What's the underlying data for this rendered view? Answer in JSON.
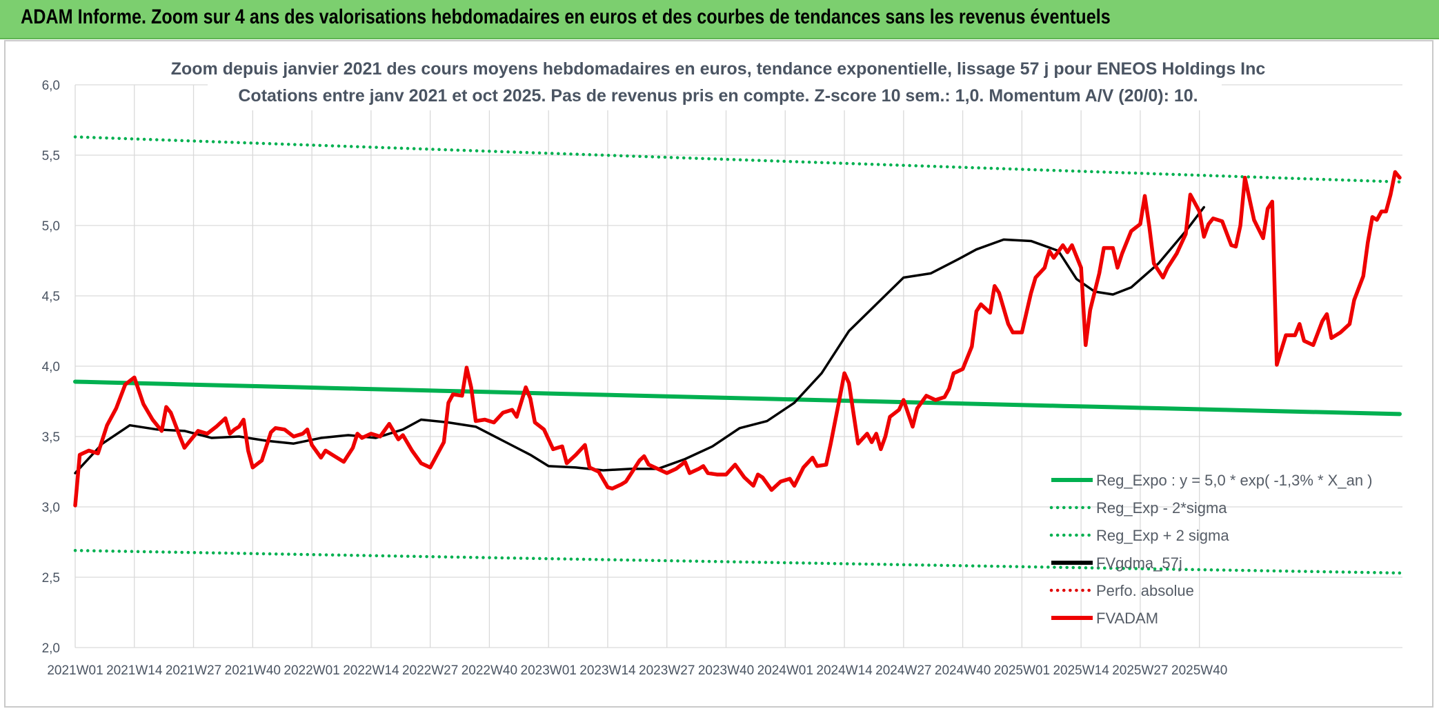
{
  "banner": {
    "title": "ADAM Informe. Zoom sur 4 ans des valorisations hebdomadaires en euros et des courbes de tendances sans les revenus éventuels",
    "color": "#7ccf6f"
  },
  "chart_data": {
    "type": "line",
    "title": "Zoom depuis janvier 2021 des cours moyens hebdomadaires en euros, tendance exponentielle, lissage 57 j pour ENEOS Holdings Inc",
    "subtitle": "Cotations entre janv 2021 et oct 2025. Pas de revenus pris en compte. Z-score 10 sem.: 1,0. Momentum A/V (20/0): 10.",
    "xlabel": "",
    "ylabel": "",
    "ylim": [
      2.0,
      6.0
    ],
    "y_ticks": [
      "2,0",
      "2,5",
      "3,0",
      "3,5",
      "4,0",
      "4,5",
      "5,0",
      "5,5",
      "6,0"
    ],
    "x_ticks": [
      "2021W01",
      "2021W14",
      "2021W27",
      "2021W40",
      "2022W01",
      "2022W14",
      "2022W27",
      "2022W40",
      "2023W01",
      "2023W14",
      "2023W27",
      "2023W40",
      "2024W01",
      "2024W14",
      "2024W27",
      "2024W40",
      "2025W01",
      "2025W14",
      "2025W27",
      "2025W40"
    ],
    "grid": true,
    "legend_position": "bottom-right",
    "series": [
      {
        "name": "Reg_Expo : y = 5,0 * exp( -1,3% *  X_an )",
        "color": "#00b050",
        "style": "solid",
        "trend": [
          3.89,
          3.66
        ]
      },
      {
        "name": "Reg_Exp - 2*sigma",
        "color": "#00b050",
        "style": "dotted",
        "trend": [
          2.69,
          2.53
        ]
      },
      {
        "name": "Reg_Exp + 2 sigma",
        "color": "#00b050",
        "style": "dotted",
        "trend": [
          5.63,
          5.31
        ]
      },
      {
        "name": "FVgdma_57j",
        "color": "#000000",
        "style": "solid",
        "anchors": [
          [
            1,
            3.24
          ],
          [
            7,
            3.45
          ],
          [
            13,
            3.58
          ],
          [
            19,
            3.55
          ],
          [
            25,
            3.54
          ],
          [
            31,
            3.49
          ],
          [
            37,
            3.5
          ],
          [
            43,
            3.47
          ],
          [
            49,
            3.45
          ],
          [
            55,
            3.49
          ],
          [
            61,
            3.51
          ],
          [
            67,
            3.49
          ],
          [
            73,
            3.55
          ],
          [
            77,
            3.62
          ],
          [
            83,
            3.6
          ],
          [
            89,
            3.57
          ],
          [
            95,
            3.47
          ],
          [
            101,
            3.37
          ],
          [
            105,
            3.29
          ],
          [
            111,
            3.28
          ],
          [
            117,
            3.26
          ],
          [
            123,
            3.27
          ],
          [
            129,
            3.27
          ],
          [
            135,
            3.34
          ],
          [
            141,
            3.43
          ],
          [
            147,
            3.56
          ],
          [
            153,
            3.61
          ],
          [
            159,
            3.74
          ],
          [
            165,
            3.95
          ],
          [
            171,
            4.25
          ],
          [
            177,
            4.44
          ],
          [
            183,
            4.63
          ],
          [
            189,
            4.66
          ],
          [
            195,
            4.76
          ],
          [
            199,
            4.83
          ],
          [
            205,
            4.9
          ],
          [
            211,
            4.89
          ],
          [
            217,
            4.82
          ],
          [
            221,
            4.62
          ],
          [
            225,
            4.53
          ],
          [
            229,
            4.51
          ],
          [
            233,
            4.56
          ],
          [
            239,
            4.73
          ],
          [
            245,
            4.96
          ],
          [
            249,
            5.13
          ]
        ]
      },
      {
        "name": "Perfo. absolue",
        "color": "#e00000",
        "style": "dotted",
        "anchors": []
      },
      {
        "name": "FVADAM",
        "color": "#ee0000",
        "style": "solid",
        "anchors": [
          [
            1,
            3.01
          ],
          [
            2,
            3.37
          ],
          [
            4,
            3.4
          ],
          [
            6,
            3.38
          ],
          [
            8,
            3.58
          ],
          [
            10,
            3.7
          ],
          [
            12,
            3.87
          ],
          [
            14,
            3.92
          ],
          [
            16,
            3.73
          ],
          [
            18,
            3.62
          ],
          [
            20,
            3.54
          ],
          [
            21,
            3.71
          ],
          [
            22,
            3.67
          ],
          [
            24,
            3.5
          ],
          [
            25,
            3.42
          ],
          [
            27,
            3.5
          ],
          [
            28,
            3.54
          ],
          [
            30,
            3.52
          ],
          [
            32,
            3.57
          ],
          [
            34,
            3.63
          ],
          [
            35,
            3.52
          ],
          [
            36,
            3.55
          ],
          [
            37,
            3.57
          ],
          [
            38,
            3.62
          ],
          [
            39,
            3.4
          ],
          [
            40,
            3.28
          ],
          [
            42,
            3.33
          ],
          [
            44,
            3.53
          ],
          [
            45,
            3.56
          ],
          [
            47,
            3.55
          ],
          [
            49,
            3.5
          ],
          [
            51,
            3.52
          ],
          [
            52,
            3.55
          ],
          [
            53,
            3.44
          ],
          [
            55,
            3.35
          ],
          [
            56,
            3.4
          ],
          [
            58,
            3.36
          ],
          [
            60,
            3.32
          ],
          [
            62,
            3.42
          ],
          [
            63,
            3.52
          ],
          [
            64,
            3.49
          ],
          [
            66,
            3.52
          ],
          [
            68,
            3.5
          ],
          [
            70,
            3.59
          ],
          [
            72,
            3.48
          ],
          [
            73,
            3.51
          ],
          [
            75,
            3.4
          ],
          [
            77,
            3.31
          ],
          [
            79,
            3.28
          ],
          [
            81,
            3.4
          ],
          [
            82,
            3.46
          ],
          [
            83,
            3.74
          ],
          [
            84,
            3.8
          ],
          [
            86,
            3.79
          ],
          [
            87,
            3.99
          ],
          [
            88,
            3.85
          ],
          [
            89,
            3.61
          ],
          [
            91,
            3.62
          ],
          [
            93,
            3.6
          ],
          [
            95,
            3.67
          ],
          [
            97,
            3.69
          ],
          [
            98,
            3.64
          ],
          [
            100,
            3.85
          ],
          [
            101,
            3.77
          ],
          [
            102,
            3.6
          ],
          [
            104,
            3.55
          ],
          [
            106,
            3.41
          ],
          [
            108,
            3.43
          ],
          [
            109,
            3.31
          ],
          [
            111,
            3.37
          ],
          [
            113,
            3.44
          ],
          [
            114,
            3.28
          ],
          [
            116,
            3.25
          ],
          [
            118,
            3.14
          ],
          [
            119,
            3.13
          ],
          [
            121,
            3.16
          ],
          [
            122,
            3.18
          ],
          [
            123,
            3.23
          ],
          [
            125,
            3.33
          ],
          [
            126,
            3.36
          ],
          [
            127,
            3.3
          ],
          [
            129,
            3.27
          ],
          [
            131,
            3.24
          ],
          [
            133,
            3.27
          ],
          [
            135,
            3.32
          ],
          [
            136,
            3.24
          ],
          [
            138,
            3.27
          ],
          [
            139,
            3.29
          ],
          [
            140,
            3.24
          ],
          [
            142,
            3.23
          ],
          [
            144,
            3.23
          ],
          [
            146,
            3.3
          ],
          [
            148,
            3.21
          ],
          [
            150,
            3.15
          ],
          [
            151,
            3.23
          ],
          [
            152,
            3.21
          ],
          [
            154,
            3.12
          ],
          [
            156,
            3.18
          ],
          [
            158,
            3.2
          ],
          [
            159,
            3.15
          ],
          [
            161,
            3.28
          ],
          [
            163,
            3.35
          ],
          [
            164,
            3.29
          ],
          [
            166,
            3.3
          ],
          [
            167,
            3.45
          ],
          [
            169,
            3.78
          ],
          [
            170,
            3.95
          ],
          [
            171,
            3.88
          ],
          [
            173,
            3.45
          ],
          [
            175,
            3.52
          ],
          [
            176,
            3.46
          ],
          [
            177,
            3.52
          ],
          [
            178,
            3.41
          ],
          [
            179,
            3.5
          ],
          [
            180,
            3.64
          ],
          [
            182,
            3.69
          ],
          [
            183,
            3.76
          ],
          [
            185,
            3.57
          ],
          [
            186,
            3.7
          ],
          [
            188,
            3.79
          ],
          [
            190,
            3.76
          ],
          [
            192,
            3.78
          ],
          [
            193,
            3.84
          ],
          [
            194,
            3.95
          ],
          [
            196,
            3.98
          ],
          [
            198,
            4.14
          ],
          [
            199,
            4.39
          ],
          [
            200,
            4.44
          ],
          [
            202,
            4.38
          ],
          [
            203,
            4.57
          ],
          [
            204,
            4.52
          ],
          [
            206,
            4.3
          ],
          [
            207,
            4.24
          ],
          [
            209,
            4.24
          ],
          [
            211,
            4.52
          ],
          [
            212,
            4.63
          ],
          [
            214,
            4.7
          ],
          [
            215,
            4.82
          ],
          [
            216,
            4.77
          ],
          [
            218,
            4.86
          ],
          [
            219,
            4.81
          ],
          [
            220,
            4.86
          ],
          [
            222,
            4.7
          ],
          [
            223,
            4.15
          ],
          [
            224,
            4.4
          ],
          [
            226,
            4.66
          ],
          [
            227,
            4.84
          ],
          [
            229,
            4.84
          ],
          [
            230,
            4.7
          ],
          [
            231,
            4.8
          ],
          [
            233,
            4.96
          ],
          [
            235,
            5.01
          ],
          [
            236,
            5.21
          ],
          [
            237,
            4.99
          ],
          [
            238,
            4.73
          ],
          [
            240,
            4.63
          ],
          [
            241,
            4.7
          ],
          [
            243,
            4.8
          ],
          [
            244,
            4.87
          ],
          [
            245,
            4.94
          ],
          [
            246,
            5.22
          ],
          [
            248,
            5.1
          ],
          [
            249,
            4.92
          ],
          [
            250,
            5.01
          ],
          [
            251,
            5.05
          ],
          [
            253,
            5.03
          ],
          [
            255,
            4.86
          ],
          [
            256,
            4.85
          ],
          [
            257,
            5.0
          ],
          [
            258,
            5.34
          ],
          [
            260,
            5.04
          ],
          [
            262,
            4.91
          ],
          [
            263,
            5.12
          ],
          [
            264,
            5.17
          ],
          [
            265,
            4.01
          ],
          [
            267,
            4.22
          ],
          [
            269,
            4.22
          ],
          [
            270,
            4.3
          ],
          [
            271,
            4.18
          ],
          [
            273,
            4.15
          ],
          [
            275,
            4.32
          ],
          [
            276,
            4.37
          ],
          [
            277,
            4.2
          ],
          [
            279,
            4.24
          ],
          [
            281,
            4.3
          ],
          [
            282,
            4.47
          ],
          [
            284,
            4.64
          ],
          [
            285,
            4.88
          ],
          [
            286,
            5.06
          ],
          [
            287,
            5.04
          ],
          [
            288,
            5.1
          ],
          [
            289,
            5.1
          ],
          [
            290,
            5.22
          ],
          [
            291,
            5.38
          ],
          [
            292,
            5.34
          ]
        ]
      }
    ]
  }
}
